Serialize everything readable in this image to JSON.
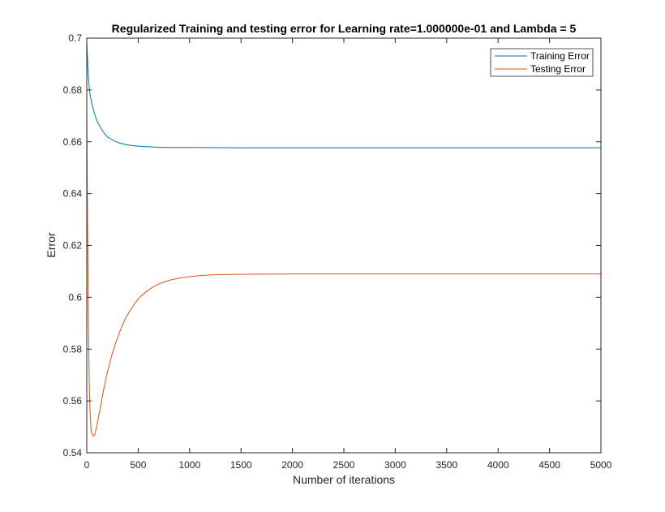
{
  "chart_data": {
    "type": "line",
    "title": "Regularized Training and testing error for Learning rate=1.000000e-01 and Lambda = 5",
    "xlabel": "Number of iterations",
    "ylabel": "Error",
    "xlim": [
      0,
      5000
    ],
    "ylim": [
      0.54,
      0.7
    ],
    "xticks": [
      0,
      500,
      1000,
      1500,
      2000,
      2500,
      3000,
      3500,
      4000,
      4500,
      5000
    ],
    "yticks": [
      0.54,
      0.56,
      0.58,
      0.6,
      0.62,
      0.64,
      0.66,
      0.68,
      0.7
    ],
    "xtick_labels": [
      "0",
      "500",
      "1000",
      "1500",
      "2000",
      "2500",
      "3000",
      "3500",
      "4000",
      "4500",
      "5000"
    ],
    "ytick_labels": [
      "0.54",
      "0.56",
      "0.58",
      "0.6",
      "0.62",
      "0.64",
      "0.66",
      "0.68",
      "0.7"
    ],
    "grid": false,
    "legend_position": "top-right",
    "series": [
      {
        "name": "Training Error",
        "color": "#0072BD",
        "x": [
          0,
          5,
          10,
          20,
          30,
          50,
          75,
          100,
          150,
          200,
          300,
          400,
          500,
          700,
          1000,
          1500,
          2000,
          3000,
          4000,
          5000
        ],
        "y": [
          0.699,
          0.694,
          0.689,
          0.683,
          0.679,
          0.6745,
          0.671,
          0.668,
          0.6645,
          0.662,
          0.6598,
          0.6588,
          0.6583,
          0.6579,
          0.6578,
          0.6577,
          0.6577,
          0.6577,
          0.6577,
          0.6577
        ]
      },
      {
        "name": "Testing Error",
        "color": "#D95319",
        "x": [
          0,
          3,
          8,
          15,
          25,
          40,
          55,
          65,
          75,
          90,
          110,
          130,
          160,
          200,
          250,
          300,
          350,
          400,
          500,
          600,
          700,
          800,
          900,
          1000,
          1200,
          1400,
          1600,
          2000,
          2500,
          3000,
          4000,
          5000
        ],
        "y": [
          0.675,
          0.655,
          0.625,
          0.595,
          0.565,
          0.55,
          0.547,
          0.5465,
          0.547,
          0.549,
          0.553,
          0.557,
          0.5635,
          0.571,
          0.5785,
          0.5845,
          0.5895,
          0.5935,
          0.5993,
          0.6028,
          0.6051,
          0.6065,
          0.6074,
          0.608,
          0.6086,
          0.6088,
          0.6089,
          0.609,
          0.609,
          0.609,
          0.609,
          0.609
        ]
      }
    ]
  }
}
